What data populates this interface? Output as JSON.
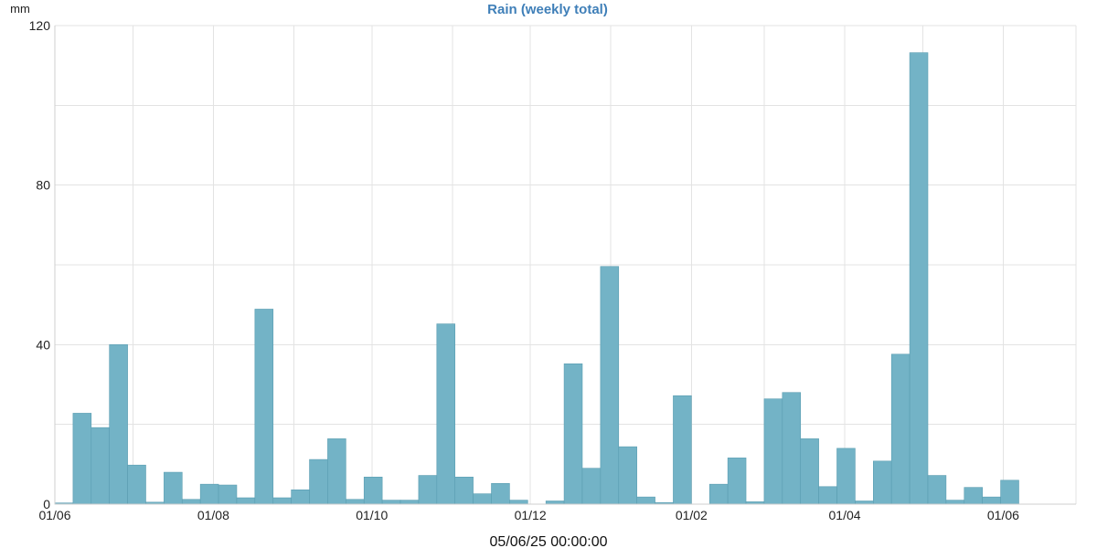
{
  "chart_data": {
    "type": "bar",
    "title": "Rain (weekly total)",
    "ylabel": "mm",
    "xlabel": "05/06/25 00:00:00",
    "ylim": [
      0,
      120
    ],
    "yticks": [
      0,
      40,
      80,
      120
    ],
    "xlim": [
      "2024-06-01",
      "2025-06-29"
    ],
    "xtick_dates": [
      "2024-06-01",
      "2024-08-01",
      "2024-10-01",
      "2024-12-01",
      "2025-02-01",
      "2025-04-01",
      "2025-06-01"
    ],
    "xtick_labels": [
      "01/06",
      "01/08",
      "01/10",
      "01/12",
      "01/02",
      "01/04",
      "01/06"
    ],
    "grid": true,
    "bar_color": "#73b3c6",
    "bar_edge_color": "#5a9db1",
    "title_color": "#3f7fb8",
    "series": [
      {
        "week_start": [
          "2024-06-01",
          "2024-06-08",
          "2024-06-15",
          "2024-06-22",
          "2024-06-29",
          "2024-07-06",
          "2024-07-13",
          "2024-07-20",
          "2024-07-27",
          "2024-08-03",
          "2024-08-10",
          "2024-08-17",
          "2024-08-24",
          "2024-08-31",
          "2024-09-07",
          "2024-09-14",
          "2024-09-21",
          "2024-09-28",
          "2024-10-05",
          "2024-10-12",
          "2024-10-19",
          "2024-10-26",
          "2024-11-02",
          "2024-11-09",
          "2024-11-16",
          "2024-11-23",
          "2024-11-30",
          "2024-12-07",
          "2024-12-14",
          "2024-12-21",
          "2024-12-28",
          "2025-01-04",
          "2025-01-11",
          "2025-01-18",
          "2025-01-25",
          "2025-02-01",
          "2025-02-08",
          "2025-02-15",
          "2025-02-22",
          "2025-03-01",
          "2025-03-08",
          "2025-03-15",
          "2025-03-22",
          "2025-03-29",
          "2025-04-05",
          "2025-04-12",
          "2025-04-19",
          "2025-04-26",
          "2025-05-03",
          "2025-05-10",
          "2025-05-17",
          "2025-05-24",
          "2025-05-31"
        ],
        "values": [
          0.3,
          22.8,
          19.2,
          40.0,
          9.8,
          0.5,
          8.0,
          1.2,
          5.0,
          4.8,
          1.6,
          48.9,
          1.6,
          3.6,
          11.2,
          16.4,
          1.2,
          6.8,
          1.0,
          1.0,
          7.2,
          45.2,
          6.8,
          2.6,
          5.2,
          1.0,
          0.0,
          0.8,
          35.2,
          9.0,
          59.6,
          14.4,
          1.8,
          0.4,
          27.2,
          0.0,
          5.0,
          11.6,
          0.6,
          26.4,
          28.0,
          16.4,
          4.4,
          14.0,
          0.8,
          10.8,
          37.6,
          113.2,
          7.2,
          1.0,
          4.2,
          1.8,
          6.0
        ]
      }
    ]
  }
}
